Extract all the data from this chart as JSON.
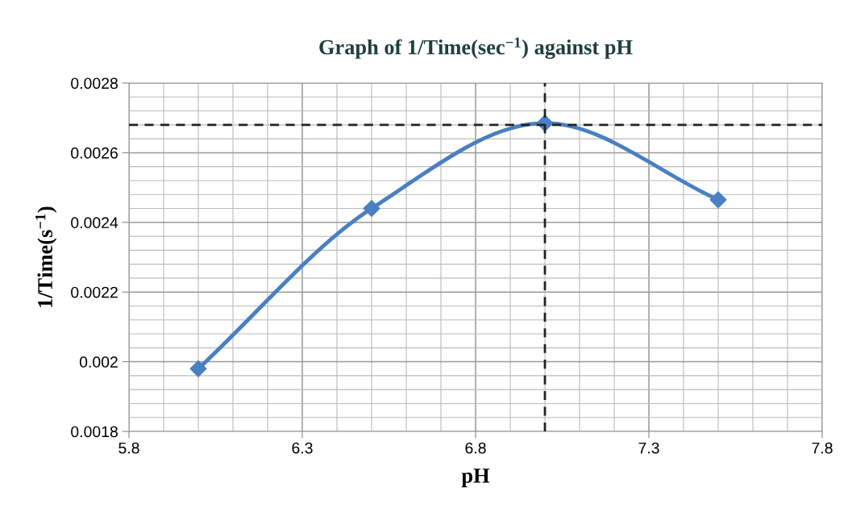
{
  "chart_data": {
    "type": "line",
    "title": "Graph of 1/Time(sec$^{−1}$) against pH",
    "xlabel": "pH",
    "ylabel": "1/Time(s$^{−1}$)",
    "x": [
      6.0,
      6.5,
      7.0,
      7.5
    ],
    "series": [
      {
        "color": "#4a7fc1",
        "values": [
          0.00198,
          0.00244,
          0.002685,
          0.002465
        ]
      }
    ],
    "xlim": [
      5.8,
      7.8
    ],
    "xticks": [
      5.8,
      6.3,
      6.8,
      7.3,
      7.8
    ],
    "ylim": [
      0.0018,
      0.0028
    ],
    "yticks": [
      0.0018,
      0.002,
      0.0022,
      0.0024,
      0.0026,
      0.0028
    ],
    "ref_lines": [
      {
        "axis": "y",
        "value": 0.00268,
        "color": "#222222",
        "line_style": "dashed"
      },
      {
        "axis": "x",
        "value": 7.0,
        "color": "#222222",
        "line_style": "dashed"
      }
    ],
    "grid": true,
    "marker": "diamond",
    "line_style": "solid",
    "legend": false
  }
}
